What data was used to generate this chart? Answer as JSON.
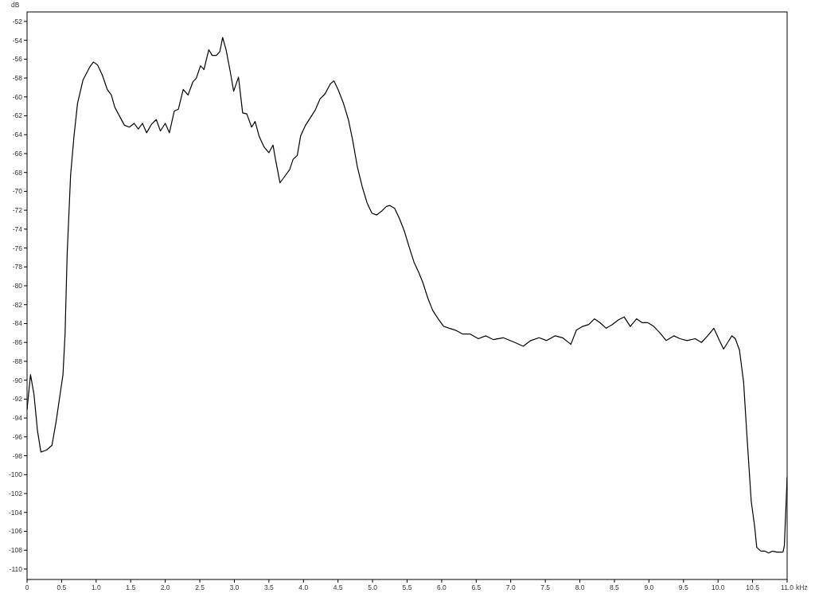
{
  "chart_data": {
    "type": "line",
    "xlabel": "kHz",
    "ylabel": "dB",
    "xlim": [
      0,
      11.0
    ],
    "ylim": [
      -111.1,
      -51
    ],
    "xticks": [
      0,
      0.5,
      {
        "value": 1,
        "label": "1.0"
      },
      1.5,
      {
        "value": 2,
        "label": "2.0"
      },
      2.5,
      {
        "value": 3,
        "label": "3.0"
      },
      3.5,
      {
        "value": 4,
        "label": "4.0"
      },
      4.5,
      {
        "value": 5,
        "label": "5.0"
      },
      5.5,
      {
        "value": 6,
        "label": "6.0"
      },
      6.5,
      {
        "value": 7,
        "label": "7.0"
      },
      7.5,
      {
        "value": 8,
        "label": "8.0"
      },
      8.5,
      {
        "value": 9,
        "label": "9.0"
      },
      9.5,
      {
        "value": 10,
        "label": "10.0"
      },
      10.5,
      {
        "value": 11,
        "label": "11.0"
      }
    ],
    "yticks": [
      -52,
      -54,
      -56,
      -58,
      -60,
      -62,
      -64,
      -66,
      -68,
      -70,
      -72,
      -74,
      -76,
      -78,
      -80,
      -82,
      -84,
      -86,
      -88,
      -90,
      -92,
      -94,
      -96,
      -98,
      -100,
      -102,
      -104,
      -106,
      -108,
      -110
    ],
    "marker": "none",
    "line_style": "solid",
    "series": [
      {
        "color": "#000000",
        "x": [
          0,
          0.05,
          0.1,
          0.15,
          0.2,
          0.28,
          0.36,
          0.42,
          0.47,
          0.52,
          0.55,
          0.58,
          0.63,
          0.68,
          0.73,
          0.81,
          0.91,
          0.96,
          1.02,
          1.09,
          1.16,
          1.22,
          1.27,
          1.35,
          1.41,
          1.48,
          1.55,
          1.61,
          1.67,
          1.73,
          1.8,
          1.87,
          1.93,
          2.0,
          2.06,
          2.13,
          2.19,
          2.26,
          2.33,
          2.4,
          2.45,
          2.51,
          2.56,
          2.63,
          2.68,
          2.74,
          2.79,
          2.83,
          2.88,
          2.94,
          2.99,
          3.06,
          3.12,
          3.18,
          3.25,
          3.3,
          3.36,
          3.43,
          3.5,
          3.56,
          3.59,
          3.66,
          3.74,
          3.8,
          3.85,
          3.91,
          3.96,
          4.03,
          4.1,
          4.17,
          4.24,
          4.31,
          4.39,
          4.44,
          4.5,
          4.58,
          4.65,
          4.71,
          4.78,
          4.85,
          4.92,
          4.99,
          5.06,
          5.13,
          5.2,
          5.25,
          5.32,
          5.39,
          5.46,
          5.53,
          5.6,
          5.67,
          5.73,
          5.8,
          5.87,
          5.95,
          6.03,
          6.11,
          6.2,
          6.3,
          6.41,
          6.53,
          6.64,
          6.75,
          6.89,
          7.06,
          7.18,
          7.29,
          7.41,
          7.52,
          7.64,
          7.75,
          7.87,
          7.95,
          8.04,
          8.13,
          8.21,
          8.29,
          8.38,
          8.47,
          8.56,
          8.64,
          8.73,
          8.82,
          8.9,
          8.98,
          9.07,
          9.16,
          9.25,
          9.36,
          9.45,
          9.55,
          9.67,
          9.76,
          9.85,
          9.94,
          10.02,
          10.08,
          10.14,
          10.2,
          10.25,
          10.31,
          10.37,
          10.42,
          10.48,
          10.53,
          10.56,
          10.62,
          10.68,
          10.73,
          10.79,
          10.85,
          10.91,
          10.94,
          10.96,
          11.0
        ],
        "values": [
          -93.1,
          -89.4,
          -91.5,
          -95.3,
          -97.6,
          -97.4,
          -96.9,
          -94.4,
          -91.9,
          -89.4,
          -85.1,
          -76.7,
          -68.3,
          -64.1,
          -60.7,
          -58.2,
          -56.8,
          -56.3,
          -56.6,
          -57.7,
          -59.2,
          -59.8,
          -61.1,
          -62.2,
          -63.0,
          -63.2,
          -62.8,
          -63.4,
          -62.8,
          -63.8,
          -62.9,
          -62.4,
          -63.6,
          -62.8,
          -63.8,
          -61.5,
          -61.3,
          -59.2,
          -59.8,
          -58.4,
          -58.0,
          -56.7,
          -57.1,
          -55.0,
          -55.6,
          -55.6,
          -55.2,
          -53.7,
          -55.0,
          -57.3,
          -59.4,
          -57.9,
          -61.7,
          -61.8,
          -63.2,
          -62.6,
          -64.2,
          -65.3,
          -65.9,
          -65.1,
          -66.4,
          -69.1,
          -68.3,
          -67.7,
          -66.6,
          -66.2,
          -64.1,
          -63.0,
          -62.2,
          -61.4,
          -60.2,
          -59.7,
          -58.6,
          -58.3,
          -59.2,
          -60.7,
          -62.4,
          -64.5,
          -67.4,
          -69.5,
          -71.2,
          -72.3,
          -72.5,
          -72.1,
          -71.6,
          -71.5,
          -71.8,
          -72.9,
          -74.2,
          -75.9,
          -77.5,
          -78.6,
          -79.7,
          -81.3,
          -82.6,
          -83.5,
          -84.3,
          -84.5,
          -84.7,
          -85.1,
          -85.1,
          -85.6,
          -85.3,
          -85.7,
          -85.5,
          -86.0,
          -86.4,
          -85.8,
          -85.5,
          -85.8,
          -85.3,
          -85.5,
          -86.2,
          -84.7,
          -84.3,
          -84.1,
          -83.5,
          -83.9,
          -84.5,
          -84.1,
          -83.6,
          -83.3,
          -84.3,
          -83.5,
          -83.9,
          -83.9,
          -84.3,
          -85.0,
          -85.8,
          -85.3,
          -85.6,
          -85.8,
          -85.6,
          -86.0,
          -85.3,
          -84.5,
          -85.8,
          -86.7,
          -86.0,
          -85.3,
          -85.6,
          -86.8,
          -90.2,
          -96.1,
          -102.8,
          -105.5,
          -107.7,
          -108.1,
          -108.1,
          -108.3,
          -108.1,
          -108.2,
          -108.2,
          -108.2,
          -107.5,
          -100.3
        ]
      }
    ]
  }
}
